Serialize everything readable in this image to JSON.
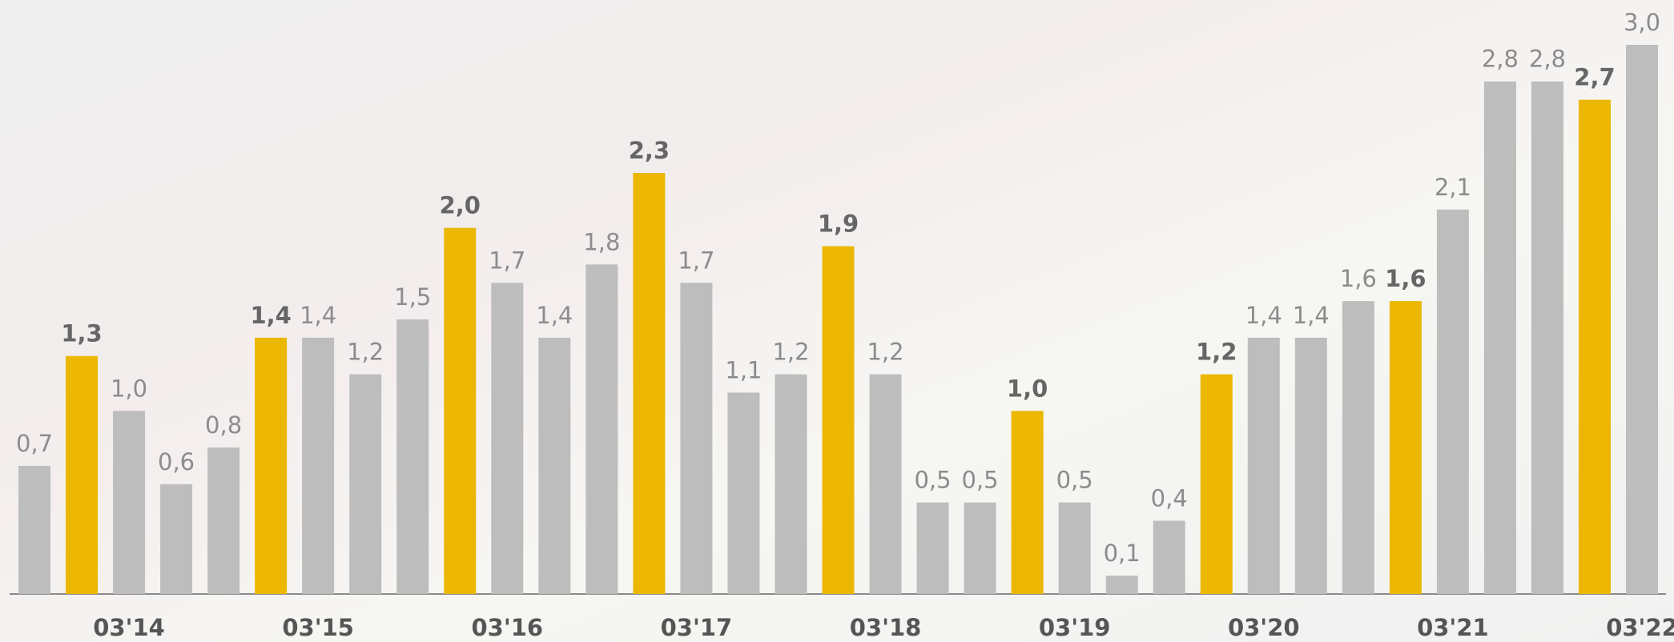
{
  "chart_data": {
    "type": "bar",
    "categories": [
      null,
      null,
      "03'14",
      null,
      null,
      null,
      "03'15",
      null,
      null,
      null,
      "03'16",
      null,
      null,
      null,
      "03'17",
      null,
      null,
      null,
      "03'18",
      null,
      null,
      null,
      "03'19",
      null,
      null,
      null,
      "03'20",
      null,
      null,
      null,
      "03'21",
      null,
      null,
      null,
      "03'22"
    ],
    "values": [
      0.7,
      1.3,
      1.0,
      0.6,
      0.8,
      1.4,
      1.4,
      1.2,
      1.5,
      2.0,
      1.7,
      1.4,
      1.8,
      2.3,
      1.7,
      1.1,
      1.2,
      1.9,
      1.2,
      0.5,
      0.5,
      1.0,
      0.5,
      0.1,
      0.4,
      1.2,
      1.4,
      1.4,
      1.6,
      1.6,
      2.1,
      2.8,
      2.8,
      2.7,
      3.0
    ],
    "value_labels": [
      "0,7",
      "1,3",
      "1,0",
      "0,6",
      "0,8",
      "1,4",
      "1,4",
      "1,2",
      "1,5",
      "2,0",
      "1,7",
      "1,4",
      "1,8",
      "2,3",
      "1,7",
      "1,1",
      "1,2",
      "1,9",
      "1,2",
      "0,5",
      "0,5",
      "1,0",
      "0,5",
      "0,1",
      "0,4",
      "1,2",
      "1,4",
      "1,4",
      "1,6",
      "1,6",
      "2,1",
      "2,8",
      "2,8",
      "2,7",
      "3,0"
    ],
    "color": "#bdbdbd",
    "colors": [
      "#bdbdbd",
      "#ebb700",
      "#bdbdbd",
      "#bdbdbd",
      "#bdbdbd",
      "#ebb700",
      "#bdbdbd",
      "#bdbdbd",
      "#bdbdbd",
      "#ebb700",
      "#bdbdbd",
      "#bdbdbd",
      "#bdbdbd",
      "#ebb700",
      "#bdbdbd",
      "#bdbdbd",
      "#bdbdbd",
      "#ebb700",
      "#bdbdbd",
      "#bdbdbd",
      "#bdbdbd",
      "#ebb700",
      "#bdbdbd",
      "#bdbdbd",
      "#bdbdbd",
      "#ebb700",
      "#bdbdbd",
      "#bdbdbd",
      "#bdbdbd",
      "#ebb700",
      "#bdbdbd",
      "#bdbdbd",
      "#bdbdbd",
      "#ebb700",
      "#bdbdbd"
    ],
    "ylim": [
      0,
      3.0
    ]
  }
}
